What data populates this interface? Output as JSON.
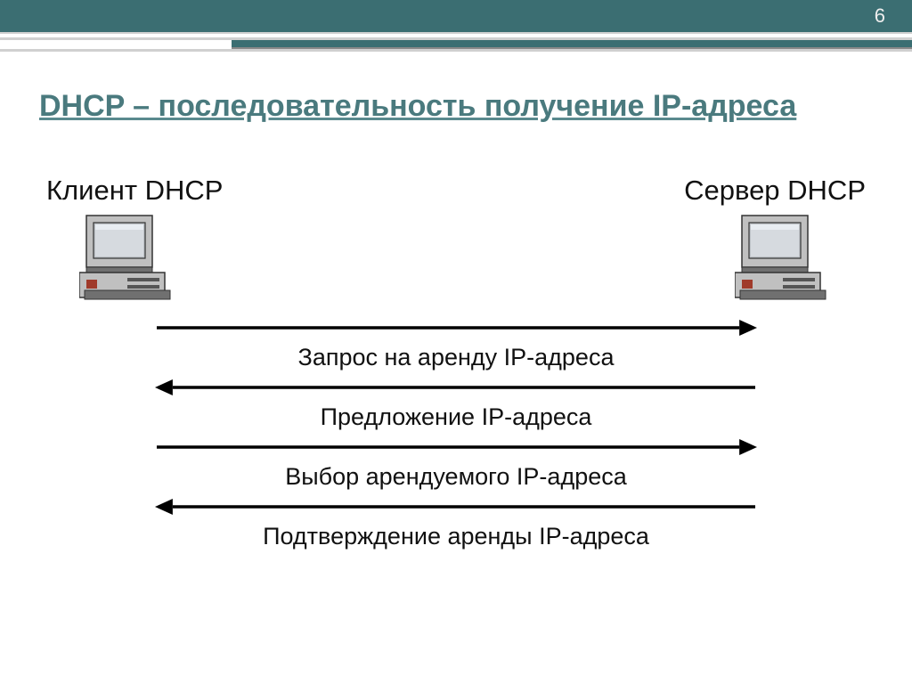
{
  "page_number": "6",
  "title": "DHCP – последовательность получение IP-адреса",
  "client_label": "Клиент DHCP",
  "server_label": "Сервер DHCP",
  "messages": [
    {
      "label": "Запрос на аренду IP-адреса",
      "direction": "right"
    },
    {
      "label": "Предложение IP-адреса",
      "direction": "left"
    },
    {
      "label": "Выбор арендуемого IP-адреса",
      "direction": "right"
    },
    {
      "label": "Подтверждение аренды IP-адреса",
      "direction": "left"
    }
  ],
  "colors": {
    "header_bg": "#3b6e72",
    "title_color": "#4a7a7e",
    "arrow_color": "#000000",
    "text_color": "#111111",
    "computer_body": "#c0c0c0",
    "computer_dark": "#707070",
    "computer_accent": "#a03a2a",
    "computer_screen": "#bfc3c8"
  },
  "arrow": {
    "line_width": 3.5,
    "head_len": 20,
    "head_half": 9
  }
}
